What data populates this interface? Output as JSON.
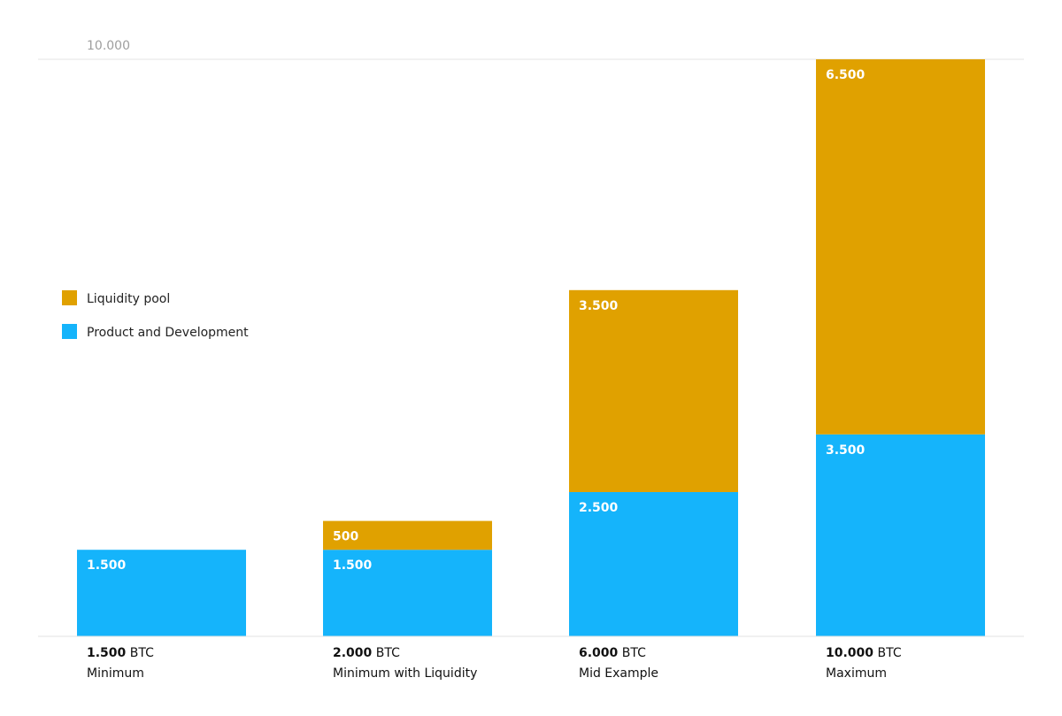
{
  "chart_data": {
    "type": "bar",
    "stacked": true,
    "ylim": [
      0,
      10000
    ],
    "y_ticks": [
      {
        "value": 10000,
        "label": "10.000"
      }
    ],
    "unit": "BTC",
    "categories": [
      "Minimum",
      "Minimum with Liquidity",
      "Mid Example",
      "Maximum"
    ],
    "totals": [
      {
        "value": 1500,
        "label": "1.500"
      },
      {
        "value": 2000,
        "label": "2.000"
      },
      {
        "value": 6000,
        "label": "6.000"
      },
      {
        "value": 10000,
        "label": "10.000"
      }
    ],
    "series": [
      {
        "name": "Product and Development",
        "color": "#15b4fb",
        "values": [
          1500,
          1500,
          2500,
          3500
        ],
        "labels": [
          "1.500",
          "1.500",
          "2.500",
          "3.500"
        ]
      },
      {
        "name": "Liquidity pool",
        "color": "#e0a100",
        "values": [
          0,
          500,
          3500,
          6500
        ],
        "labels": [
          "",
          "500",
          "3.500",
          "6.500"
        ]
      }
    ],
    "legend": {
      "position": "left",
      "entries": [
        {
          "name": "Liquidity pool",
          "color": "#e0a100"
        },
        {
          "name": "Product and Development",
          "color": "#15b4fb"
        }
      ]
    },
    "grid": false
  }
}
